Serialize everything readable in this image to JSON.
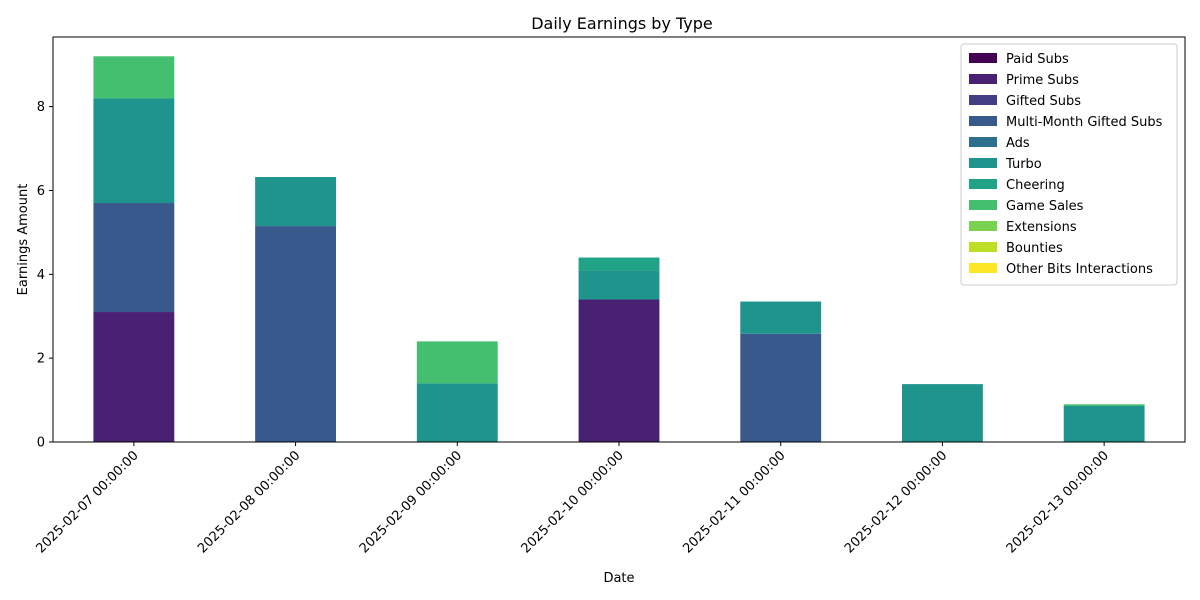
{
  "chart_data": {
    "type": "bar",
    "stacked": true,
    "title": "Daily Earnings by Type",
    "xlabel": "Date",
    "ylabel": "Earnings Amount",
    "ylim": [
      0,
      9.66
    ],
    "yticks": [
      0,
      2,
      4,
      6,
      8
    ],
    "legend_position": "top-right",
    "grid": false,
    "categories": [
      "2025-02-07 00:00:00",
      "2025-02-08 00:00:00",
      "2025-02-09 00:00:00",
      "2025-02-10 00:00:00",
      "2025-02-11 00:00:00",
      "2025-02-12 00:00:00",
      "2025-02-13 00:00:00"
    ],
    "series": [
      {
        "name": "Paid Subs",
        "color": "#440154",
        "values": [
          0,
          0,
          0,
          0,
          0,
          0,
          0
        ]
      },
      {
        "name": "Prime Subs",
        "color": "#482173",
        "values": [
          3.1,
          0,
          0,
          3.4,
          0,
          0,
          0
        ]
      },
      {
        "name": "Gifted Subs",
        "color": "#433e85",
        "values": [
          0,
          0,
          0,
          0,
          0,
          0,
          0
        ]
      },
      {
        "name": "Multi-Month Gifted Subs",
        "color": "#38598c",
        "values": [
          2.6,
          5.15,
          0,
          0,
          2.58,
          0,
          0
        ]
      },
      {
        "name": "Ads",
        "color": "#2d708e",
        "values": [
          0,
          0,
          0,
          0,
          0,
          0,
          0
        ]
      },
      {
        "name": "Turbo",
        "color": "#1f948c",
        "values": [
          2.5,
          1.17,
          1.4,
          0.7,
          0.77,
          1.38,
          0.86
        ]
      },
      {
        "name": "Cheering",
        "color": "#20a386",
        "values": [
          0,
          0,
          0,
          0.3,
          0,
          0,
          0
        ]
      },
      {
        "name": "Game Sales",
        "color": "#44bf70",
        "values": [
          1.0,
          0,
          1.0,
          0,
          0,
          0,
          0.04
        ]
      },
      {
        "name": "Extensions",
        "color": "#7ad151",
        "values": [
          0,
          0,
          0,
          0,
          0,
          0,
          0
        ]
      },
      {
        "name": "Bounties",
        "color": "#bddf26",
        "values": [
          0,
          0,
          0,
          0,
          0,
          0,
          0
        ]
      },
      {
        "name": "Other Bits Interactions",
        "color": "#fde725",
        "values": [
          0,
          0,
          0,
          0,
          0,
          0,
          0
        ]
      }
    ]
  }
}
